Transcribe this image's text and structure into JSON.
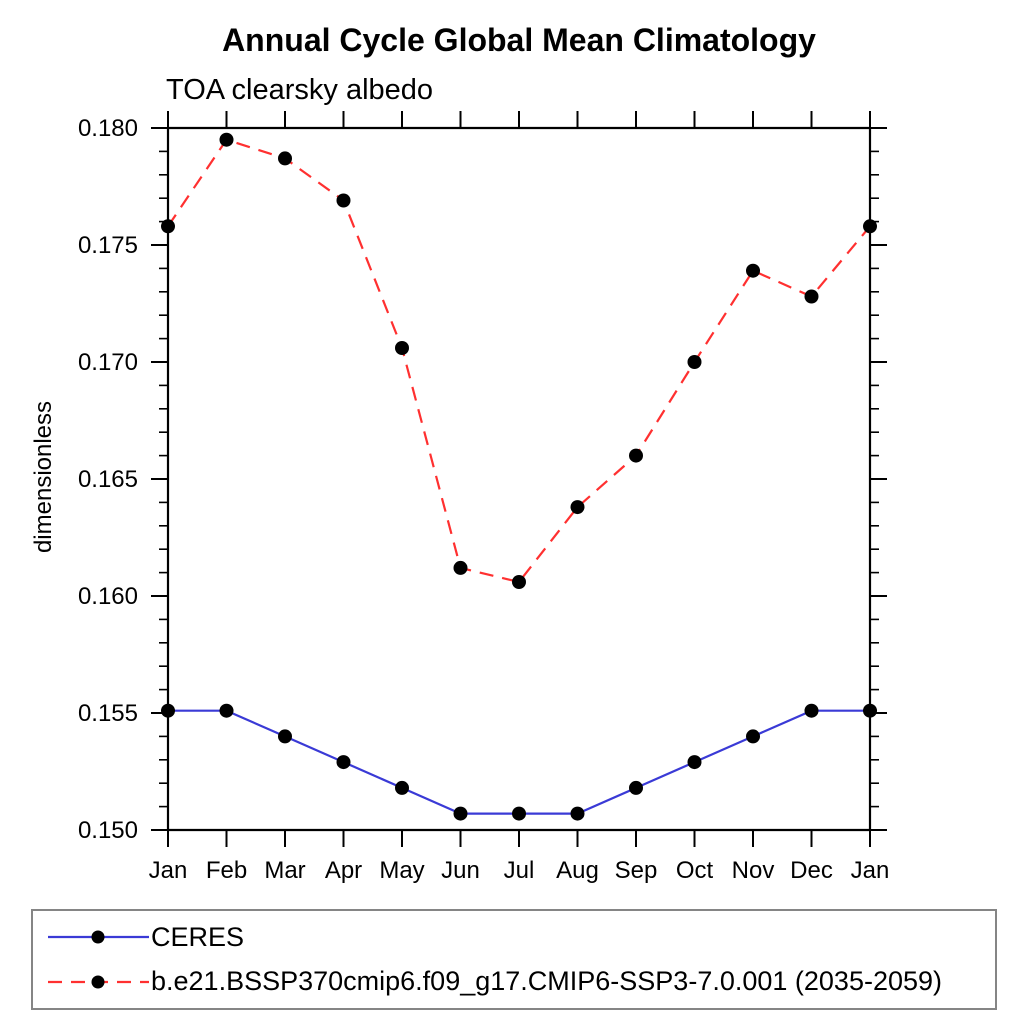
{
  "page": {
    "background": "#ffffff",
    "axis_color": "#000000",
    "legend_border_color": "#858585"
  },
  "chart_data": {
    "type": "line",
    "title": "Annual Cycle Global Mean Climatology",
    "subtitle": "TOA clearsky albedo",
    "ylabel": "dimensionless",
    "xlabel": "",
    "categories": [
      "Jan",
      "Feb",
      "Mar",
      "Apr",
      "May",
      "Jun",
      "Jul",
      "Aug",
      "Sep",
      "Oct",
      "Nov",
      "Dec",
      "Jan"
    ],
    "ylim": [
      0.15,
      0.18
    ],
    "ytick_major_interval": 0.005,
    "ytick_minor_interval": 0.001,
    "ytick_label_decimals": 3,
    "grid": false,
    "legend_position": "bottom",
    "marker_color": "#000000",
    "series": [
      {
        "name": "CERES",
        "color": "#3a3ad6",
        "style": "solid",
        "marker": "circle",
        "values": [
          0.1551,
          0.1551,
          0.154,
          0.1529,
          0.1518,
          0.1507,
          0.1507,
          0.1507,
          0.1518,
          0.1529,
          0.154,
          0.1551,
          0.1551
        ]
      },
      {
        "name": "b.e21.BSSP370cmip6.f09_g17.CMIP6-SSP3-7.0.001 (2035-2059)",
        "color": "#ff3030",
        "style": "dashed",
        "marker": "circle",
        "values": [
          0.1758,
          0.1795,
          0.1787,
          0.1769,
          0.1706,
          0.1612,
          0.1606,
          0.1638,
          0.166,
          0.17,
          0.1739,
          0.1728,
          0.1758
        ]
      }
    ]
  }
}
